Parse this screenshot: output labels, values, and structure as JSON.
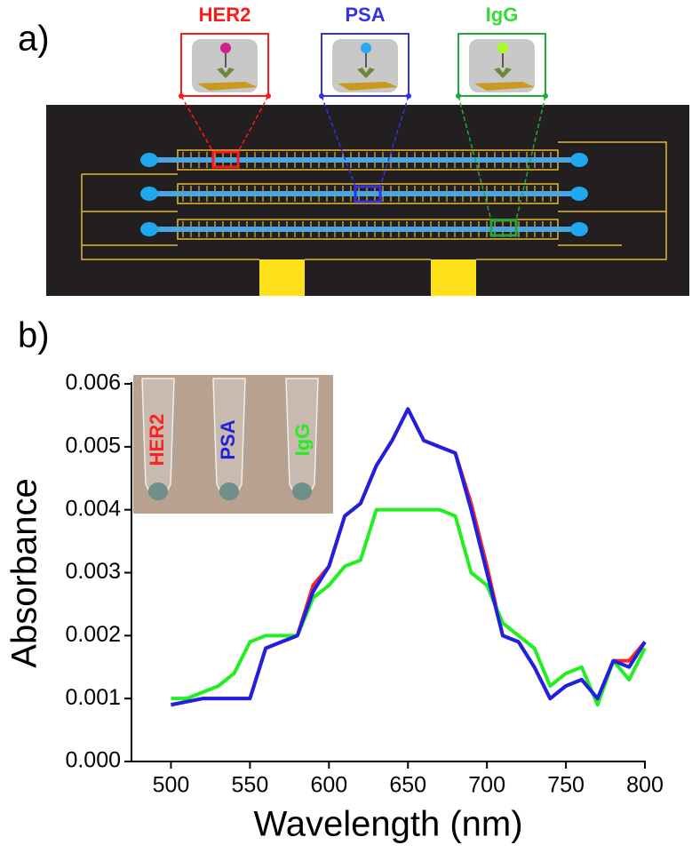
{
  "panel_a": {
    "label": "a)",
    "targets": [
      "HER2",
      "PSA",
      "IgG"
    ]
  },
  "chart_data": {
    "type": "line",
    "panel_label": "b)",
    "xlabel": "Wavelength (nm)",
    "ylabel": "Absorbance",
    "inset_labels": [
      "HER2",
      "PSA",
      "IgG"
    ],
    "xlim": [
      475,
      800
    ],
    "xticks": [
      500,
      550,
      600,
      650,
      700,
      750,
      800
    ],
    "ylim": [
      0,
      0.006
    ],
    "yticks": [
      {
        "value": 0,
        "label": "0.000"
      },
      0.001,
      0.002,
      0.003,
      0.004,
      0.005,
      0.006
    ],
    "x": [
      500,
      510,
      520,
      530,
      540,
      550,
      560,
      570,
      580,
      590,
      600,
      610,
      620,
      630,
      640,
      650,
      660,
      670,
      680,
      690,
      700,
      710,
      720,
      730,
      740,
      750,
      760,
      770,
      780,
      790,
      800
    ],
    "series": [
      {
        "name": "HER2",
        "color": "#ff2020",
        "values": [
          0.0009,
          0.00095,
          0.001,
          0.001,
          0.001,
          0.001,
          0.0018,
          0.0019,
          0.002,
          0.0028,
          0.0031,
          0.0039,
          0.0041,
          0.0047,
          0.0051,
          0.0056,
          0.0051,
          0.005,
          0.0049,
          0.0041,
          0.0031,
          0.002,
          0.0019,
          0.0015,
          0.001,
          0.0012,
          0.0013,
          0.001,
          0.0016,
          0.0016,
          0.0019
        ]
      },
      {
        "name": "IgG",
        "color": "#22ee22",
        "values": [
          0.001,
          0.001,
          0.0011,
          0.0012,
          0.0014,
          0.0019,
          0.002,
          0.002,
          0.002,
          0.0026,
          0.0028,
          0.0031,
          0.0032,
          0.004,
          0.004,
          0.004,
          0.004,
          0.004,
          0.0039,
          0.003,
          0.0028,
          0.0022,
          0.002,
          0.0018,
          0.0012,
          0.0014,
          0.0015,
          0.0009,
          0.0016,
          0.0013,
          0.0018
        ]
      },
      {
        "name": "PSA",
        "color": "#2020e0",
        "values": [
          0.0009,
          0.00095,
          0.001,
          0.001,
          0.001,
          0.001,
          0.0018,
          0.0019,
          0.002,
          0.0027,
          0.0031,
          0.0039,
          0.0041,
          0.0047,
          0.0051,
          0.0056,
          0.0051,
          0.005,
          0.0049,
          0.004,
          0.003,
          0.002,
          0.0019,
          0.0015,
          0.001,
          0.0012,
          0.0013,
          0.001,
          0.0016,
          0.0015,
          0.0019
        ]
      }
    ]
  }
}
